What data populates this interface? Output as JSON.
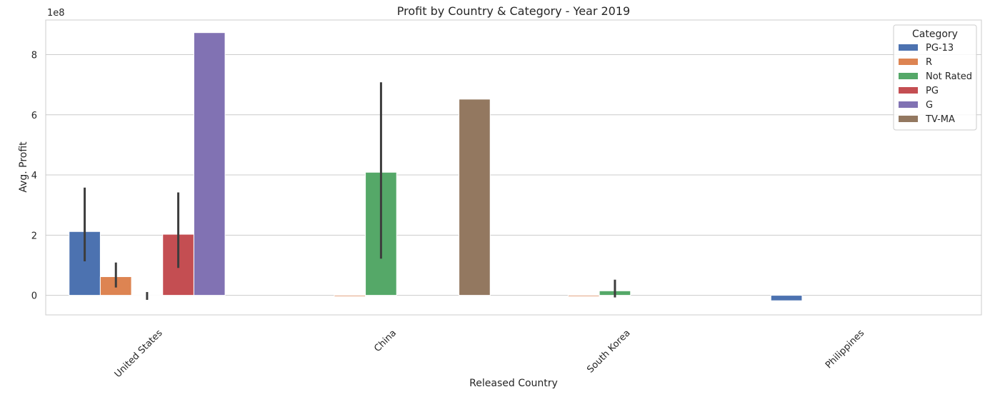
{
  "chart_data": {
    "type": "bar",
    "title": "Profit by Country & Category - Year 2019",
    "xlabel": "Released Country",
    "ylabel": "Avg. Profit",
    "y_offset_text": "1e8",
    "categories": [
      "United States",
      "China",
      "South Korea",
      "Philippines"
    ],
    "ylim": [
      -0.65,
      9.15
    ],
    "yticks": [
      0,
      2,
      4,
      6,
      8
    ],
    "ytick_labels": [
      "0",
      "2",
      "4",
      "6",
      "8"
    ],
    "grid": true,
    "legend": {
      "title": "Category",
      "position": "top-right"
    },
    "series": [
      {
        "name": "PG-13",
        "color": "#4c72b0",
        "values": [
          2.12,
          null,
          null,
          -0.18
        ],
        "ci": [
          [
            1.13,
            3.58
          ],
          null,
          null,
          null
        ]
      },
      {
        "name": "R",
        "color": "#dd8452",
        "values": [
          0.62,
          -0.04,
          -0.04,
          null
        ],
        "ci": [
          [
            0.26,
            1.09
          ],
          null,
          null,
          null
        ]
      },
      {
        "name": "Not Rated",
        "color": "#55a868",
        "values": [
          -0.02,
          4.09,
          0.15,
          null
        ],
        "ci": [
          [
            -0.15,
            0.11
          ],
          [
            1.22,
            7.08
          ],
          [
            -0.07,
            0.52
          ],
          null
        ]
      },
      {
        "name": "PG",
        "color": "#c44e52",
        "values": [
          2.03,
          null,
          null,
          null
        ],
        "ci": [
          [
            0.91,
            3.42
          ],
          null,
          null,
          null
        ]
      },
      {
        "name": "G",
        "color": "#8172b3",
        "values": [
          8.73,
          null,
          null,
          null
        ],
        "ci": [
          null,
          null,
          null,
          null
        ]
      },
      {
        "name": "TV-MA",
        "color": "#937860",
        "values": [
          null,
          6.52,
          null,
          null
        ],
        "ci": [
          null,
          null,
          null,
          null
        ]
      }
    ]
  }
}
